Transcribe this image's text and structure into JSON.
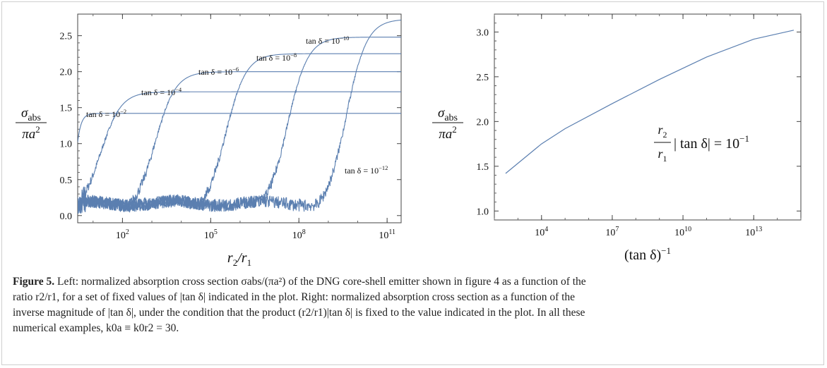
{
  "chart_data": [
    {
      "type": "line",
      "position": "left",
      "xscale": "log",
      "xlim": [
        3,
        300000000000
      ],
      "ylim": [
        -0.1,
        2.8
      ],
      "ylabel": "σabs / πa²",
      "xlabel": "r2/r1",
      "xticks": [
        {
          "v": 100,
          "base": "10",
          "exp": "2"
        },
        {
          "v": 100000,
          "base": "10",
          "exp": "5"
        },
        {
          "v": 100000000,
          "base": "10",
          "exp": "8"
        },
        {
          "v": 100000000000,
          "base": "10",
          "exp": "11"
        }
      ],
      "yticks": [
        "0.0",
        "0.5",
        "1.0",
        "1.5",
        "2.0",
        "2.5"
      ],
      "series": [
        {
          "name": "tan δ = 10−2",
          "label_base": "tan δ = 10",
          "label_exp": "−2",
          "plateau": 1.42,
          "mid": 4,
          "width": 0.25,
          "onset": 0.5
        },
        {
          "name": "tan δ = 10−4",
          "label_base": "tan δ = 10",
          "label_exp": "−4",
          "plateau": 1.72,
          "mid": 1.25,
          "width": 0.35,
          "onset": 2.6
        },
        {
          "name": "tan δ = 10−6",
          "label_base": "tan δ = 10",
          "label_exp": "−6",
          "plateau": 2.0,
          "mid": 3.1,
          "width": 0.35,
          "onset": 4.5
        },
        {
          "name": "tan δ = 10−8",
          "label_base": "tan δ = 10",
          "label_exp": "−8",
          "plateau": 2.25,
          "mid": 5.5,
          "width": 0.35,
          "onset": 6.6
        },
        {
          "name": "tan δ = 10−10",
          "label_base": "tan δ = 10",
          "label_exp": "−10",
          "plateau": 2.48,
          "mid": 7.6,
          "width": 0.35,
          "onset": 8.6
        },
        {
          "name": "tan δ = 10−12",
          "label_base": "tan δ = 10",
          "label_exp": "−12",
          "plateau": 2.73,
          "mid": 9.6,
          "width": 0.35,
          "onset": 10.5
        }
      ],
      "color": "#5b7fb0"
    },
    {
      "type": "line",
      "position": "right",
      "xscale": "log",
      "xlim": [
        100,
        1000000000000000
      ],
      "ylim": [
        0.9,
        3.2
      ],
      "ylabel": "σabs / πa²",
      "xlabel": "(tan δ)−1",
      "xticks": [
        {
          "v": 10000,
          "base": "10",
          "exp": "4"
        },
        {
          "v": 10000000,
          "base": "10",
          "exp": "7"
        },
        {
          "v": 10000000000,
          "base": "10",
          "exp": "10"
        },
        {
          "v": 10000000000000,
          "base": "10",
          "exp": "13"
        }
      ],
      "yticks": [
        "1.0",
        "1.5",
        "2.0",
        "2.5",
        "3.0"
      ],
      "x": [
        300,
        10000,
        100000,
        10000000,
        1000000000,
        100000000000,
        10000000000000,
        500000000000000
      ],
      "y": [
        1.42,
        1.75,
        1.92,
        2.2,
        2.47,
        2.72,
        2.92,
        3.02
      ],
      "annotation": "r2/r1 |tan δ| = 10−1",
      "color": "#5b7fb0"
    }
  ],
  "caption": {
    "figure_label": "Figure 5.",
    "line1": " Left: normalized absorption cross section σabs/(πa²) of the DNG core-shell emitter shown in figure 4 as a function of the",
    "line2": "ratio r2/r1, for a set of fixed values of |tan δ| indicated in the plot. Right: normalized absorption cross section as a function of the",
    "line3": "inverse magnitude of |tan δ|, under the condition that the product (r2/r1)|tan δ| is fixed to the value indicated in the plot. In all these",
    "line4": "numerical examples, k0a ≡ k0r2 = 30."
  }
}
